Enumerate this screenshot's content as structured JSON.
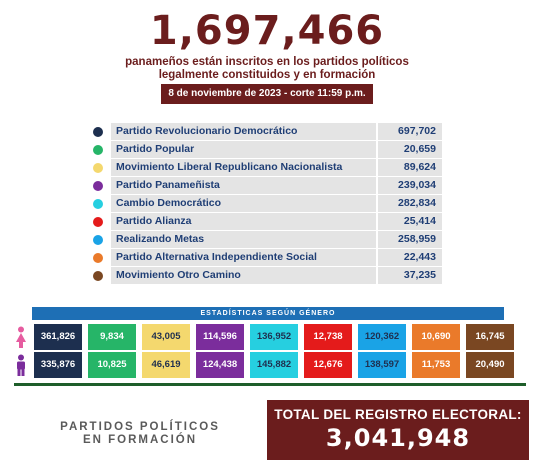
{
  "headline": "1,697,466",
  "subtitle_line1": "panameños están inscritos en los partidos políticos",
  "subtitle_line2": "legalmente constituidos y en formación",
  "date": "8 de noviembre de 2023 - corte 11:59 p.m.",
  "parties": [
    {
      "name": "Partido Revolucionario Democrático",
      "value": "697,702",
      "color": "#1d2f4f"
    },
    {
      "name": "Partido Popular",
      "value": "20,659",
      "color": "#26b568"
    },
    {
      "name": "Movimiento Liberal Republicano Nacionalista",
      "value": "89,624",
      "color": "#f4d86e"
    },
    {
      "name": "Partido Panameñista",
      "value": "239,034",
      "color": "#7b2d9c"
    },
    {
      "name": "Cambio Democrático",
      "value": "282,834",
      "color": "#26cfe0"
    },
    {
      "name": "Partido Alianza",
      "value": "25,414",
      "color": "#e41b1b"
    },
    {
      "name": "Realizando Metas",
      "value": "258,959",
      "color": "#1aa3e6"
    },
    {
      "name": "Partido Alternativa Independiente Social",
      "value": "22,443",
      "color": "#ea7a2a"
    },
    {
      "name": "Movimiento Otro Camino",
      "value": "37,235",
      "color": "#7a4722"
    }
  ],
  "gender_title": "ESTADÍSTICAS SEGÚN GÉNERO",
  "gender_colors": [
    "#1d2f4f",
    "#26b568",
    "#f4d86e",
    "#7b2d9c",
    "#26cfe0",
    "#e41b1b",
    "#1aa3e6",
    "#ea7a2a",
    "#7a4722"
  ],
  "gender_text_colors": [
    "#ffffff",
    "#ffffff",
    "#1f2f4f",
    "#ffffff",
    "#1f2f4f",
    "#ffffff",
    "#1f2f4f",
    "#ffffff",
    "#ffffff"
  ],
  "female": {
    "icon": "female-icon",
    "color": "#e65ca0",
    "values": [
      "361,826",
      "9,834",
      "43,005",
      "114,596",
      "136,952",
      "12,738",
      "120,362",
      "10,690",
      "16,745"
    ]
  },
  "male": {
    "icon": "male-icon",
    "color": "#7b2d9c",
    "values": [
      "335,876",
      "10,825",
      "46,619",
      "124,438",
      "145,882",
      "12,676",
      "138,597",
      "11,753",
      "20,490"
    ]
  },
  "formacion_line1": "PARTIDOS POLÍTICOS",
  "formacion_line2": "EN FORMACIÓN",
  "total_label": "TOTAL DEL REGISTRO ELECTORAL:",
  "total_value": "3,041,948"
}
